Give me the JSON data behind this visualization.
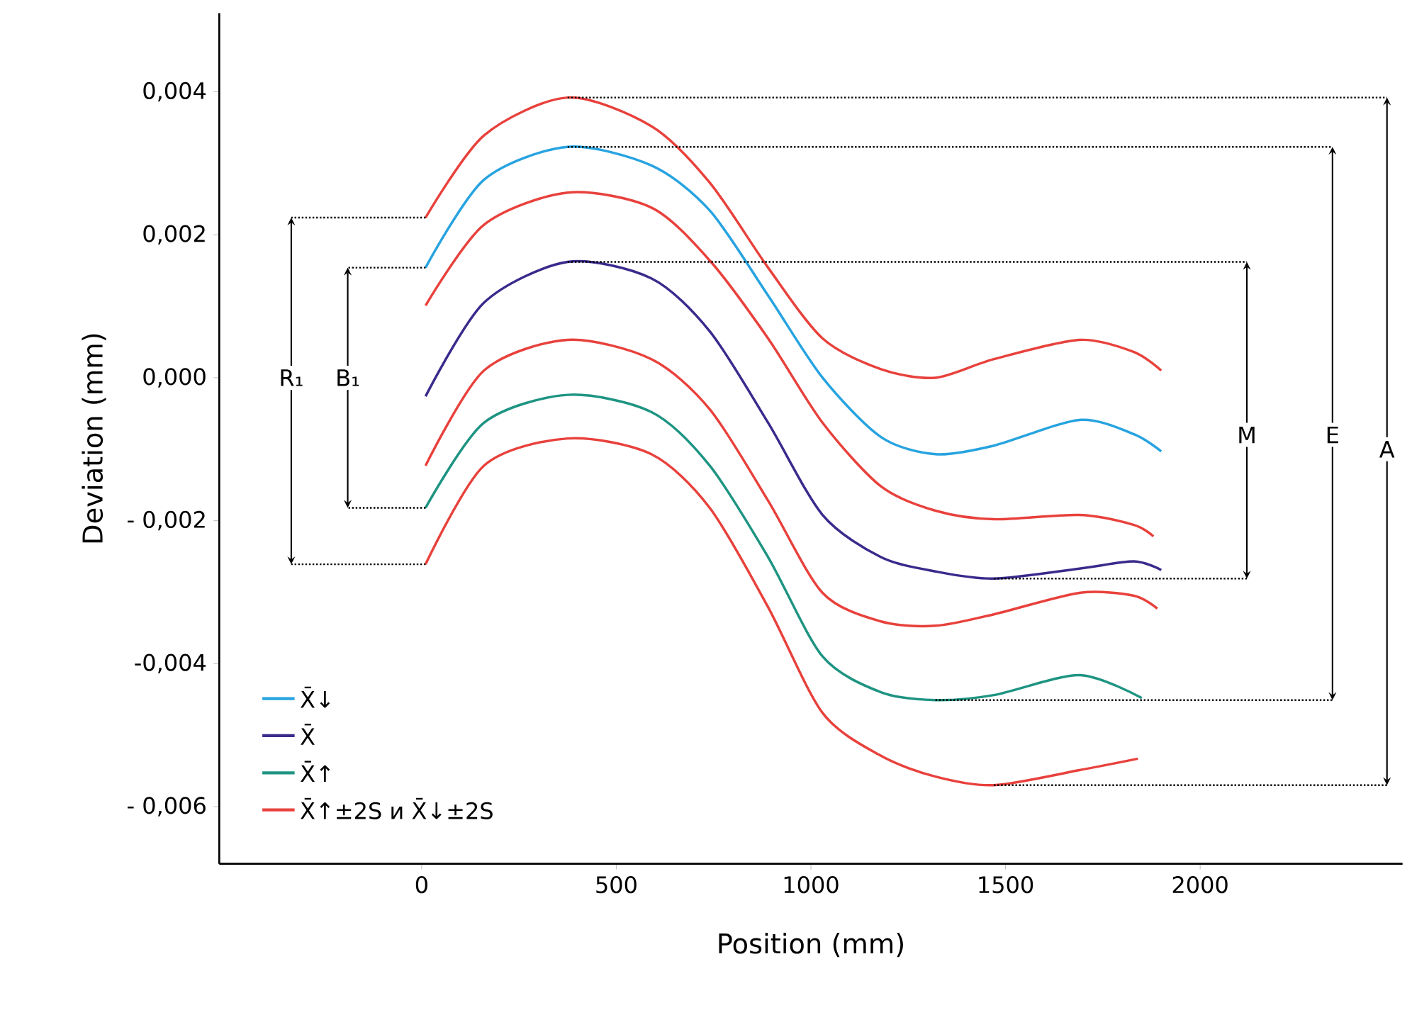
{
  "chart_data": {
    "type": "line",
    "xlabel": "Position (mm)",
    "ylabel": "Deviation (mm)",
    "xlim": [
      -520,
      2520
    ],
    "ylim": [
      -0.0068,
      0.0051
    ],
    "xticks": [
      0,
      500,
      1000,
      1500,
      2000
    ],
    "yticks": [
      {
        "value": 0.004,
        "label": "0,004"
      },
      {
        "value": 0.002,
        "label": "0,002"
      },
      {
        "value": 0,
        "label": "0,000"
      },
      {
        "value": -0.002,
        "label": "- 0,002"
      },
      {
        "value": -0.004,
        "label": "-0,004"
      },
      {
        "value": -0.006,
        "label": "- 0,006"
      }
    ],
    "grid": false,
    "legend": "bottom left",
    "marker": "none",
    "line_style": "solid",
    "series": [
      {
        "name": "X̄↓",
        "color": "#27a3e0",
        "x": [
          10,
          160,
          375,
          590,
          740,
          890,
          1030,
          1180,
          1320,
          1470,
          1690,
          1830,
          1900
        ],
        "values": [
          0.00154,
          0.00277,
          0.00323,
          0.00297,
          0.00234,
          0.00115,
          0,
          -0.00083,
          -0.00107,
          -0.00095,
          -0.00059,
          -0.00079,
          -0.00103
        ]
      },
      {
        "name": "X̄",
        "color": "#3b2a8c",
        "x": [
          10,
          160,
          375,
          590,
          740,
          890,
          1030,
          1180,
          1320,
          1470,
          1690,
          1830,
          1900
        ],
        "values": [
          -0.00026,
          0.00105,
          0.00162,
          0.00139,
          0.00065,
          -0.00063,
          -0.00192,
          -0.00251,
          -0.00271,
          -0.00281,
          -0.00267,
          -0.00257,
          -0.00269
        ]
      },
      {
        "name": "X̄↑",
        "color": "#1e9482",
        "x": [
          10,
          160,
          375,
          590,
          740,
          890,
          1030,
          1180,
          1320,
          1470,
          1690,
          1850
        ],
        "values": [
          -0.00182,
          -0.00063,
          -0.00024,
          -0.00048,
          -0.00123,
          -0.00251,
          -0.0039,
          -0.0044,
          -0.00451,
          -0.00444,
          -0.00416,
          -0.00448
        ]
      },
      {
        "name": "X̄↑±2S и X̄↓±2S",
        "color": "#e8413c",
        "x": [
          10,
          160,
          375,
          590,
          740,
          890,
          1030,
          1180,
          1320,
          1470,
          1690,
          1830,
          1900
        ],
        "values": [
          0.00224,
          0.00339,
          0.00392,
          0.00352,
          0.00273,
          0.00154,
          0.00055,
          0.00012,
          0,
          0.00026,
          0.00053,
          0.00036,
          0.0001
        ]
      },
      {
        "color": "#e8413c",
        "x": [
          10,
          160,
          375,
          590,
          740,
          890,
          1030,
          1180,
          1320,
          1470,
          1690,
          1830,
          1880
        ],
        "values": [
          0.00101,
          0.00214,
          0.00259,
          0.00238,
          0.00164,
          0.00055,
          -0.00063,
          -0.00152,
          -0.00186,
          -0.00198,
          -0.00192,
          -0.00206,
          -0.00222
        ]
      },
      {
        "color": "#e8413c",
        "x": [
          10,
          160,
          375,
          590,
          740,
          890,
          1030,
          1180,
          1320,
          1470,
          1690,
          1830,
          1890
        ],
        "values": [
          -0.00123,
          0.0001,
          0.00053,
          0.00026,
          -0.00044,
          -0.00172,
          -0.00301,
          -0.00341,
          -0.00347,
          -0.00331,
          -0.00301,
          -0.00305,
          -0.00323
        ]
      },
      {
        "color": "#e8413c",
        "x": [
          10,
          160,
          375,
          590,
          740,
          890,
          1030,
          1180,
          1320,
          1470,
          1690,
          1840
        ],
        "values": [
          -0.00261,
          -0.00123,
          -0.00085,
          -0.00107,
          -0.00182,
          -0.00321,
          -0.00469,
          -0.00529,
          -0.00558,
          -0.0057,
          -0.00549,
          -0.00533
        ]
      }
    ],
    "annotations": [
      {
        "text": "R₁",
        "x": -335,
        "y": 0
      },
      {
        "text": "B₁",
        "x": -190,
        "y": 0
      },
      {
        "text": "M",
        "x": 2120,
        "y": -0.0008
      },
      {
        "text": "E",
        "x": 2340,
        "y": -0.0008
      },
      {
        "text": "A",
        "x": 2480,
        "y": -0.001
      }
    ]
  }
}
